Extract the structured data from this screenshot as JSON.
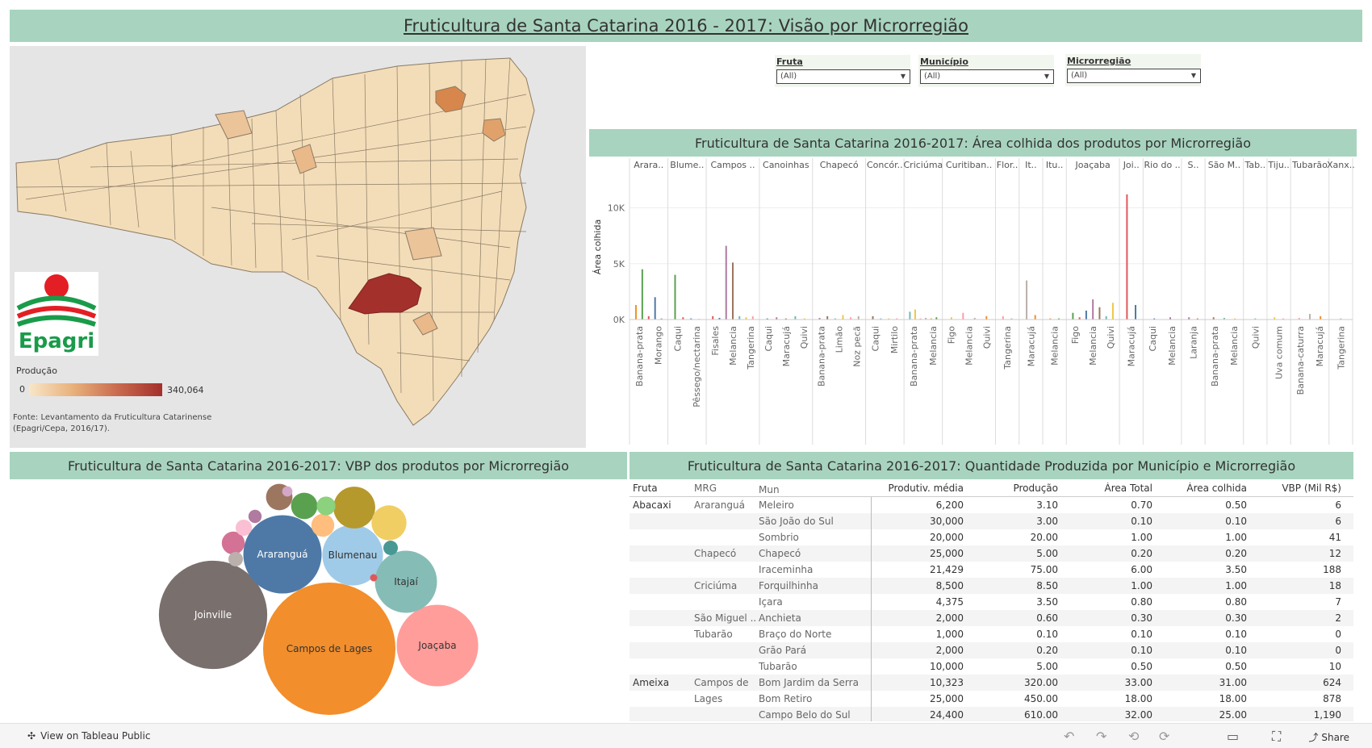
{
  "title": "Fruticultura de Santa Catarina 2016 - 2017: Visão por Microrregião",
  "map": {
    "legend_title": "Produção",
    "legend_min": "0",
    "legend_max": "340,064",
    "source": "Fonte: Levantamento da Fruticultura Catarinense (Epagri/Cepa, 2016/17).",
    "logo_text": "Epagri"
  },
  "filters": [
    {
      "label": "Fruta",
      "value": "(All)"
    },
    {
      "label": "Município",
      "value": "(All)"
    },
    {
      "label": "Microrregião",
      "value": "(All)"
    }
  ],
  "area_title": "Fruticultura de Santa Catarina 2016-2017: Área colhida dos produtos por Microrregião",
  "vbp_title": "Fruticultura de Santa Catarina 2016-2017: VBP dos produtos por Microrregião",
  "table_title": "Fruticultura de Santa Catarina 2016-2017: Quantidade  Produzida por Município e Microrregião",
  "chart_data": [
    {
      "type": "bar",
      "title": "Fruticultura de Santa Catarina 2016-2017: Área colhida dos produtos por Microrregião",
      "ylabel": "Área colhida",
      "ylim": [
        0,
        13000
      ],
      "yticks": [
        {
          "value": 0,
          "label": "0K"
        },
        {
          "value": 5000,
          "label": "5K"
        },
        {
          "value": 10000,
          "label": "10K"
        }
      ],
      "groups": [
        {
          "name": "Arara..",
          "labels": [
            "Banana-prata",
            "Morango"
          ],
          "bars": [
            1300,
            4500,
            300,
            2000,
            100
          ]
        },
        {
          "name": "Blume..",
          "labels": [
            "Caqui",
            "Pêssego/nectarina"
          ],
          "bars": [
            4000,
            200,
            100,
            50
          ]
        },
        {
          "name": "Campos ..",
          "labels": [
            "Fisales",
            "Melancia",
            "Tangerina"
          ],
          "bars": [
            300,
            150,
            6600,
            5100,
            300,
            200,
            300
          ]
        },
        {
          "name": "Canoinhas",
          "labels": [
            "Caqui",
            "Maracujá",
            "Quivi"
          ],
          "bars": [
            100,
            200,
            100,
            300,
            100
          ]
        },
        {
          "name": "Chapecó",
          "labels": [
            "Banana-prata",
            "Limão",
            "Noz pecã"
          ],
          "bars": [
            150,
            300,
            100,
            400,
            200,
            300
          ]
        },
        {
          "name": "Concór..",
          "labels": [
            "Caqui",
            "Mirtilo"
          ],
          "bars": [
            300,
            100,
            100,
            100
          ]
        },
        {
          "name": "Criciúma",
          "labels": [
            "Banana-prata",
            "Melancia"
          ],
          "bars": [
            700,
            900,
            100,
            150,
            100,
            200
          ]
        },
        {
          "name": "Curitiban..",
          "labels": [
            "Figo",
            "Melancia",
            "Quivi"
          ],
          "bars": [
            200,
            600,
            150,
            300
          ]
        },
        {
          "name": "Flor..",
          "labels": [
            "Tangerina"
          ],
          "bars": [
            300,
            100
          ]
        },
        {
          "name": "It..",
          "labels": [
            "Maracujá"
          ],
          "bars": [
            3500,
            400
          ]
        },
        {
          "name": "Itu..",
          "labels": [
            "Melancia"
          ],
          "bars": [
            100,
            100
          ]
        },
        {
          "name": "Joaçaba",
          "labels": [
            "Figo",
            "Melancia",
            "Quivi"
          ],
          "bars": [
            600,
            200,
            800,
            1800,
            1100,
            300,
            1500
          ]
        },
        {
          "name": "Joi..",
          "labels": [
            "Maracujá"
          ],
          "bars": [
            11200,
            1300
          ]
        },
        {
          "name": "Rio do ..",
          "labels": [
            "Caqui",
            "Melancia"
          ],
          "bars": [
            100,
            200
          ]
        },
        {
          "name": "S..",
          "labels": [
            "Laranja"
          ],
          "bars": [
            200,
            100
          ]
        },
        {
          "name": "São M..",
          "labels": [
            "Banana-prata",
            "Melancia"
          ],
          "bars": [
            200,
            150,
            100
          ]
        },
        {
          "name": "Tab..",
          "labels": [
            "Quivi"
          ],
          "bars": [
            100
          ]
        },
        {
          "name": "Tiju..",
          "labels": [
            "Uva comum"
          ],
          "bars": [
            200,
            100
          ]
        },
        {
          "name": "Tubarão",
          "labels": [
            "Banana-caturra",
            "Maracujá"
          ],
          "bars": [
            150,
            500,
            300
          ]
        },
        {
          "name": "Xanx..",
          "labels": [
            "Tangerina"
          ],
          "bars": [
            100
          ]
        }
      ]
    },
    {
      "type": "bubble",
      "title": "Fruticultura de Santa Catarina 2016-2017: VBP dos produtos por Microrregião",
      "bubbles": [
        {
          "label": "Campos de Lages",
          "value": 100,
          "color": "#f28e2b"
        },
        {
          "label": "Joinville",
          "value": 67,
          "color": "#79706e"
        },
        {
          "label": "Joaçaba",
          "value": 38,
          "color": "#ff9d9a"
        },
        {
          "label": "Araranguá",
          "value": 35,
          "color": "#4e79a7"
        },
        {
          "label": "Blumenau",
          "value": 21,
          "color": "#a0cbe8"
        },
        {
          "label": "Itajaí",
          "value": 22,
          "color": "#86bcb6"
        },
        {
          "label": "",
          "value": 10,
          "color": "#b6992d"
        },
        {
          "label": "",
          "value": 7,
          "color": "#f1ce63"
        },
        {
          "label": "",
          "value": 4,
          "color": "#59a14f"
        },
        {
          "label": "",
          "value": 4,
          "color": "#9d7660"
        },
        {
          "label": "",
          "value": 3,
          "color": "#ffbe7d"
        },
        {
          "label": "",
          "value": 3,
          "color": "#d37295"
        },
        {
          "label": "",
          "value": 2,
          "color": "#8cd17d"
        },
        {
          "label": "",
          "value": 1.5,
          "color": "#fabfd2"
        },
        {
          "label": "",
          "value": 1.2,
          "color": "#499894"
        },
        {
          "label": "",
          "value": 1.2,
          "color": "#bab0ac"
        },
        {
          "label": "",
          "value": 1,
          "color": "#b07aa1"
        },
        {
          "label": "",
          "value": 0.6,
          "color": "#d4a6c8"
        },
        {
          "label": "",
          "value": 0.3,
          "color": "#e15759"
        }
      ]
    }
  ],
  "table": {
    "headers": [
      "Fruta",
      "MRG",
      "Mun",
      "Produtiv. média",
      "Produção",
      "Área Total",
      "Área colhida",
      "VBP (Mil R$)"
    ],
    "rows": [
      [
        "Abacaxi",
        "Araranguá",
        "Meleiro",
        "6,200",
        "3.10",
        "0.70",
        "0.50",
        "6"
      ],
      [
        "",
        "",
        "São João do Sul",
        "30,000",
        "3.00",
        "0.10",
        "0.10",
        "6"
      ],
      [
        "",
        "",
        "Sombrio",
        "20,000",
        "20.00",
        "1.00",
        "1.00",
        "41"
      ],
      [
        "",
        "Chapecó",
        "Chapecó",
        "25,000",
        "5.00",
        "0.20",
        "0.20",
        "12"
      ],
      [
        "",
        "",
        "Iraceminha",
        "21,429",
        "75.00",
        "6.00",
        "3.50",
        "188"
      ],
      [
        "",
        "Criciúma",
        "Forquilhinha",
        "8,500",
        "8.50",
        "1.00",
        "1.00",
        "18"
      ],
      [
        "",
        "",
        "Içara",
        "4,375",
        "3.50",
        "0.80",
        "0.80",
        "7"
      ],
      [
        "",
        "São Miguel ..",
        "Anchieta",
        "2,000",
        "0.60",
        "0.30",
        "0.30",
        "2"
      ],
      [
        "",
        "Tubarão",
        "Braço do Norte",
        "1,000",
        "0.10",
        "0.10",
        "0.10",
        "0"
      ],
      [
        "",
        "",
        "Grão Pará",
        "2,000",
        "0.20",
        "0.10",
        "0.10",
        "0"
      ],
      [
        "",
        "",
        "Tubarão",
        "10,000",
        "5.00",
        "0.50",
        "0.50",
        "10"
      ],
      [
        "Ameixa",
        "Campos de",
        "Bom Jardim da Serra",
        "10,323",
        "320.00",
        "33.00",
        "31.00",
        "624"
      ],
      [
        "",
        "Lages",
        "Bom Retiro",
        "25,000",
        "450.00",
        "18.00",
        "18.00",
        "878"
      ],
      [
        "",
        "",
        "Campo Belo do Sul",
        "24,400",
        "610.00",
        "32.00",
        "25.00",
        "1,190"
      ]
    ]
  },
  "footer": {
    "view_label": "View on Tableau Public",
    "share_label": "Share"
  }
}
